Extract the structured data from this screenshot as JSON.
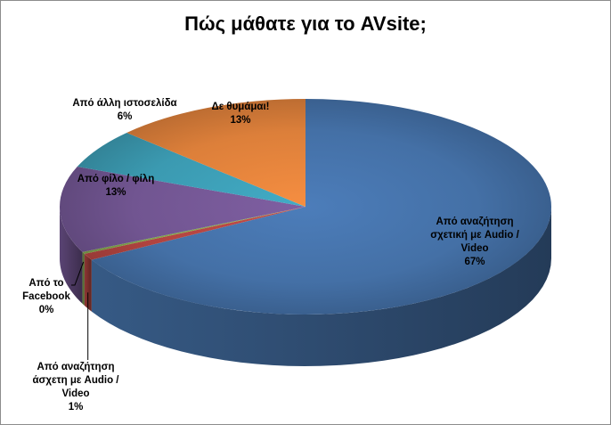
{
  "chart_data": {
    "type": "pie",
    "title": "Πώς μάθατε για το AVsite;",
    "slices": [
      {
        "label": "Από αναζήτηση σχετική με Audio / Video",
        "percent_label": "67%",
        "value": 67,
        "color": "#4470A6"
      },
      {
        "label": "Από αναζήτηση άσχετη με Audio / Video",
        "percent_label": "1%",
        "value": 1,
        "color": "#B14440"
      },
      {
        "label": "Από το Facebook",
        "percent_label": "0%",
        "value": 0.3,
        "color": "#7FA24A"
      },
      {
        "label": "Από φίλο / φίλη",
        "percent_label": "13%",
        "value": 13,
        "color": "#715591"
      },
      {
        "label": "Από άλλη ιστοσελίδα",
        "percent_label": "6%",
        "value": 6,
        "color": "#3B9AB1"
      },
      {
        "label": "Δε θυμάμαι!",
        "percent_label": "13%",
        "value": 13,
        "color": "#DC7F3A"
      }
    ],
    "legend": "none",
    "style": "3d"
  }
}
